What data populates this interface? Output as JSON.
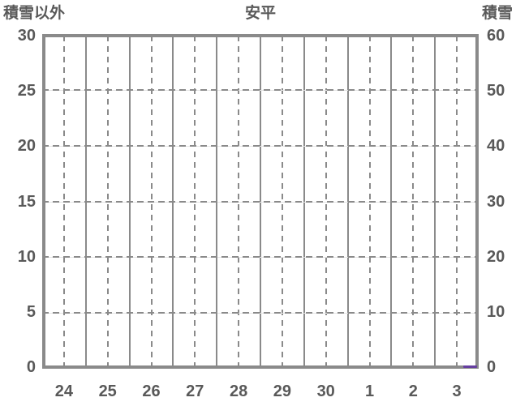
{
  "header": {
    "left_label": "積雪以外",
    "title": "安平",
    "right_label": "積雪"
  },
  "chart_data": {
    "type": "line",
    "title": "安平",
    "categories": [
      "24",
      "25",
      "26",
      "27",
      "28",
      "29",
      "30",
      "1",
      "2",
      "3"
    ],
    "left_axis": {
      "label": "積雪以外",
      "range": [
        0,
        30
      ],
      "ticks": [
        "30",
        "25",
        "20",
        "15",
        "10",
        "5",
        "0"
      ]
    },
    "right_axis": {
      "label": "積雪",
      "range": [
        0,
        60
      ],
      "ticks": [
        "60",
        "50",
        "40",
        "30",
        "20",
        "10",
        "0"
      ]
    },
    "grid": {
      "vertical_solid": "day boundaries",
      "vertical_dashed": "day midpoints",
      "horizontal_dashed_step_left_axis": 5,
      "horizontal_dashed_step_right_axis": 10
    },
    "series": [
      {
        "name": "積雪",
        "axis": "right",
        "color": "#663fa0",
        "note": "flat line at 0 visible only for the final hours of day 3",
        "segment": {
          "x_frac_start": 0.965,
          "x_frac_end": 0.996,
          "value": 0
        }
      }
    ],
    "colors": {
      "border": "#8a8a8a",
      "grid": "#8a8a8a",
      "light_grid": "#e4e4e4",
      "text": "#595959",
      "background": "#ffffff"
    },
    "legend": "none"
  }
}
